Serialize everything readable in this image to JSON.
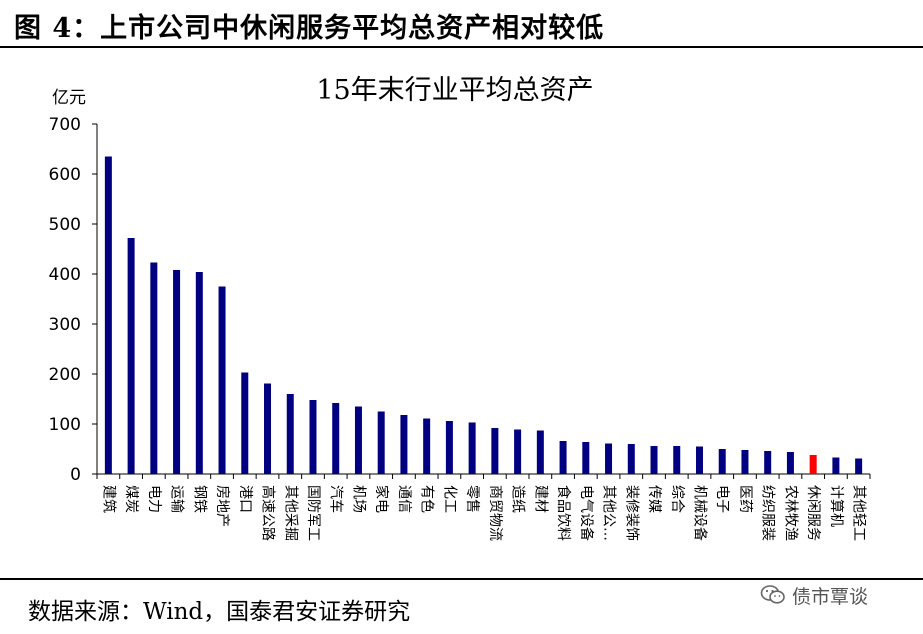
{
  "figure": {
    "title": "图 4：上市公司中休闲服务平均总资产相对较低",
    "source": "数据来源：Wind，国泰君安证券研究",
    "watermark": "债市覃谈",
    "watermark_icon": "wechat-icon"
  },
  "chart_data": {
    "type": "bar",
    "title": "15年末行业平均总资产",
    "ylabel": "亿元",
    "xlabel": "",
    "ylim": [
      0,
      700
    ],
    "yticks": [
      0,
      100,
      200,
      300,
      400,
      500,
      600,
      700
    ],
    "grid": false,
    "legend": "none",
    "bar_color": "#000080",
    "highlight_color": "#ff0000",
    "highlight_category": "休闲服务",
    "categories": [
      "建筑",
      "煤炭",
      "电力",
      "运输",
      "钢铁",
      "房地产",
      "港口",
      "高速公路",
      "其他采掘",
      "国防军工",
      "汽车",
      "机场",
      "家电",
      "通信",
      "有色",
      "化工",
      "零售",
      "商贸物流",
      "造纸",
      "建材",
      "食品饮料",
      "电气设备",
      "其他公…",
      "装修装饰",
      "传媒",
      "综合",
      "机械设备",
      "电子",
      "医药",
      "纺织服装",
      "农林牧渔",
      "休闲服务",
      "计算机",
      "其他轻工"
    ],
    "values": [
      635,
      472,
      423,
      408,
      404,
      375,
      203,
      181,
      160,
      148,
      142,
      135,
      125,
      118,
      111,
      106,
      103,
      92,
      89,
      87,
      66,
      64,
      61,
      60,
      56,
      56,
      55,
      50,
      48,
      46,
      44,
      38,
      33,
      31
    ]
  }
}
